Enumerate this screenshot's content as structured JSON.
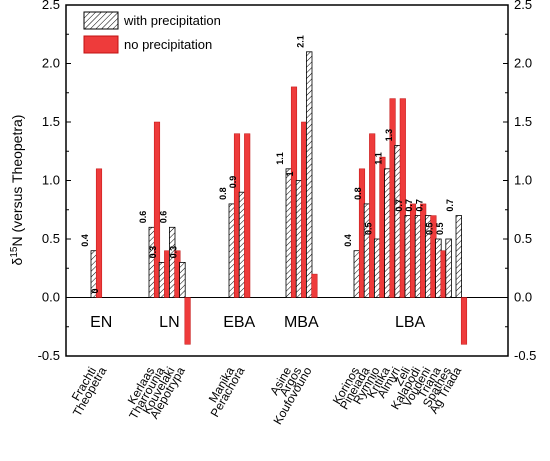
{
  "chart_data": {
    "type": "bar",
    "ylabel": "δ15N (versus Theopetra)",
    "ylim": [
      -0.5,
      2.5
    ],
    "yticks": [
      -0.5,
      0.0,
      0.5,
      1.0,
      1.5,
      2.0,
      2.5
    ],
    "ytick_labels": [
      "-0.5",
      "0.0",
      "0.5",
      "1.0",
      "1.5",
      "2.0",
      "2.5"
    ],
    "legend_position": "top-left",
    "series": [
      {
        "name": "with precipitation",
        "pattern": "hatched",
        "color": "#ffffff"
      },
      {
        "name": "no precipitation",
        "pattern": "solid",
        "color": "#ee3b3b"
      }
    ],
    "groups": [
      {
        "period": "EN",
        "sites": [
          {
            "name": "Frachti",
            "with_precipitation": 0.4,
            "no_precipitation": 1.1,
            "label": "0.4"
          },
          {
            "name": "Theopetra",
            "with_precipitation": 0.0,
            "no_precipitation": 0.0,
            "label": "0"
          }
        ]
      },
      {
        "period": "LN",
        "sites": [
          {
            "name": "Kerlaas",
            "with_precipitation": 0.6,
            "no_precipitation": 1.5,
            "label": "0.6"
          },
          {
            "name": "Tharrounia",
            "with_precipitation": 0.3,
            "no_precipitation": 0.4,
            "label": "0.3"
          },
          {
            "name": "Kouvelaki",
            "with_precipitation": 0.6,
            "no_precipitation": 0.4,
            "label": "0.6"
          },
          {
            "name": "Alepotrypa",
            "with_precipitation": 0.3,
            "no_precipitation": -0.4,
            "label": "0.3"
          }
        ]
      },
      {
        "period": "EBA",
        "sites": [
          {
            "name": "Manika",
            "with_precipitation": 0.8,
            "no_precipitation": 1.4,
            "label": "0.8"
          },
          {
            "name": "Perachora",
            "with_precipitation": 0.9,
            "no_precipitation": 1.4,
            "label": "0.9"
          }
        ]
      },
      {
        "period": "MBA",
        "sites": [
          {
            "name": "Asine",
            "with_precipitation": 1.1,
            "no_precipitation": 1.8,
            "label": "1.1"
          },
          {
            "name": "Argos",
            "with_precipitation": 1.0,
            "no_precipitation": 1.5,
            "label": "1"
          },
          {
            "name": "Koufovouno",
            "with_precipitation": 2.1,
            "no_precipitation": 0.2,
            "label": "2.1"
          }
        ]
      },
      {
        "period": "LBA",
        "sites": [
          {
            "name": "Korinos",
            "with_precipitation": 0.4,
            "no_precipitation": 1.1,
            "label": "0.4"
          },
          {
            "name": "Pineiada",
            "with_precipitation": 0.8,
            "no_precipitation": 1.4,
            "label": "0.8"
          },
          {
            "name": "Rymnio",
            "with_precipitation": 0.5,
            "no_precipitation": 1.2,
            "label": "0.5"
          },
          {
            "name": "Kritika",
            "with_precipitation": 1.1,
            "no_precipitation": 1.7,
            "label": "1.1"
          },
          {
            "name": "Almyri",
            "with_precipitation": 1.3,
            "no_precipitation": 1.7,
            "label": "1.3"
          },
          {
            "name": "Zeli",
            "with_precipitation": 0.7,
            "no_precipitation": 0.8,
            "label": "0.7"
          },
          {
            "name": "Kalapodi",
            "with_precipitation": 0.7,
            "no_precipitation": 0.8,
            "label": "0.7"
          },
          {
            "name": "Voudeni",
            "with_precipitation": 0.7,
            "no_precipitation": 0.7,
            "label": "0.7"
          },
          {
            "name": "Triana",
            "with_precipitation": 0.5,
            "no_precipitation": 0.4,
            "label": "0.5"
          },
          {
            "name": "Spathes",
            "with_precipitation": 0.5,
            "no_precipitation": null,
            "label": "0.5"
          },
          {
            "name": "Ag Triada",
            "with_precipitation": 0.7,
            "no_precipitation": -0.4,
            "label": "0.7"
          }
        ]
      }
    ]
  }
}
